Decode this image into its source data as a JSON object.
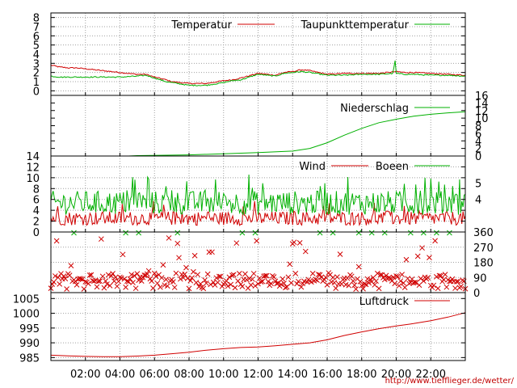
{
  "footer_url": "http://www.tiefflieger.de/wetter/",
  "colors": {
    "red": "#d00000",
    "green": "#00b000",
    "grid": "#a0a0a0",
    "frame": "#000000",
    "footer": "#cc0000"
  },
  "chart_data": [
    {
      "id": "temp",
      "type": "line",
      "xlim": [
        0,
        1440
      ],
      "ylim": [
        -0.5,
        8.5
      ],
      "y_ticks": [
        0,
        1,
        2,
        3,
        4,
        5,
        6,
        7,
        8
      ],
      "y_tick_labels": [
        "0",
        "1",
        "2",
        "3",
        "4",
        "5",
        "6",
        "7",
        "8"
      ],
      "legend": [
        "Temperatur",
        "Taupunkttemperatur"
      ],
      "series": [
        {
          "name": "Temperatur",
          "color": "red",
          "x": [
            0,
            30,
            60,
            90,
            120,
            180,
            240,
            300,
            330,
            360,
            400,
            420,
            480,
            540,
            600,
            630,
            660,
            720,
            780,
            810,
            840,
            870,
            900,
            960,
            1020,
            1080,
            1140,
            1200,
            1230,
            1260,
            1320,
            1380,
            1440
          ],
          "y": [
            2.8,
            2.6,
            2.5,
            2.5,
            2.4,
            2.2,
            2.0,
            1.8,
            1.8,
            1.5,
            1.2,
            1.0,
            0.8,
            0.8,
            1.1,
            1.2,
            1.4,
            1.9,
            1.7,
            2.0,
            2.1,
            2.3,
            2.2,
            1.8,
            1.9,
            1.9,
            1.9,
            2.1,
            2.0,
            2.0,
            1.9,
            1.8,
            1.7
          ]
        },
        {
          "name": "Taupunkttemperatur",
          "color": "green",
          "x": [
            0,
            30,
            60,
            90,
            120,
            180,
            240,
            300,
            330,
            360,
            400,
            420,
            480,
            540,
            600,
            630,
            660,
            720,
            780,
            810,
            840,
            870,
            900,
            960,
            1020,
            1080,
            1140,
            1190,
            1195,
            1200,
            1230,
            1260,
            1320,
            1380,
            1440
          ],
          "y": [
            1.6,
            1.5,
            1.5,
            1.5,
            1.5,
            1.5,
            1.5,
            1.6,
            1.7,
            1.4,
            1.0,
            0.9,
            0.6,
            0.6,
            0.9,
            1.1,
            1.2,
            1.8,
            1.6,
            1.9,
            2.0,
            2.1,
            2.0,
            1.7,
            1.7,
            1.8,
            1.8,
            1.9,
            3.6,
            1.9,
            1.8,
            1.8,
            1.7,
            1.7,
            1.6
          ]
        }
      ]
    },
    {
      "id": "rain",
      "type": "line",
      "xlim": [
        0,
        1440
      ],
      "ylim": [
        0,
        16
      ],
      "y_ticks": [
        0,
        2,
        4,
        6,
        8,
        10,
        12,
        14,
        16
      ],
      "y_tick_labels": [
        "0",
        "2",
        "4",
        "6",
        "8",
        "10",
        "12",
        "14",
        "16"
      ],
      "legend": [
        "Niederschlag"
      ],
      "series": [
        {
          "name": "Niederschlag",
          "color": "green",
          "x": [
            0,
            270,
            300,
            480,
            600,
            720,
            840,
            900,
            960,
            1020,
            1080,
            1140,
            1200,
            1260,
            1320,
            1380,
            1440
          ],
          "y": [
            0,
            0,
            0.1,
            0.3,
            0.6,
            0.9,
            1.3,
            2.0,
            3.5,
            5.5,
            7.3,
            8.8,
            9.7,
            10.5,
            11.0,
            11.4,
            11.7
          ]
        }
      ]
    },
    {
      "id": "wind",
      "type": "line",
      "xlim": [
        0,
        1440
      ],
      "ylim": [
        0,
        14
      ],
      "y_ticks": [
        0,
        2,
        4,
        6,
        8,
        10,
        12,
        14
      ],
      "y_tick_labels": [
        "0",
        "2",
        "4",
        "6",
        "8",
        "10",
        "12",
        "14"
      ],
      "right_ticks": [
        4,
        5
      ],
      "right_tick_values": [
        6,
        9
      ],
      "legend": [
        "Wind",
        "Boeen"
      ],
      "series": [
        {
          "name": "Wind",
          "color": "red",
          "mean": 2.0,
          "amp": 1.3
        },
        {
          "name": "Boeen",
          "color": "green",
          "mean": 4.5,
          "amp": 2.2
        }
      ]
    },
    {
      "id": "direction",
      "type": "scatter",
      "xlim": [
        0,
        1440
      ],
      "ylim": [
        0,
        360
      ],
      "right_ticks": [
        0,
        90,
        180,
        270,
        360
      ],
      "right_tick_labels": [
        "0",
        "90",
        "180",
        "270",
        "360"
      ],
      "clusters": [
        90,
        45
      ],
      "color": "red"
    },
    {
      "id": "pressure",
      "type": "line",
      "xlim": [
        0,
        1440
      ],
      "ylim": [
        984,
        1007
      ],
      "y_ticks": [
        985,
        990,
        995,
        1000,
        1005
      ],
      "y_tick_labels": [
        "985",
        "990",
        "995",
        "1000",
        "1005"
      ],
      "legend": [
        "Luftdruck"
      ],
      "series": [
        {
          "name": "Luftdruck",
          "color": "red",
          "x": [
            0,
            60,
            120,
            180,
            240,
            300,
            360,
            420,
            480,
            540,
            600,
            660,
            720,
            780,
            840,
            900,
            960,
            1020,
            1080,
            1140,
            1200,
            1260,
            1320,
            1380,
            1440
          ],
          "y": [
            985.8,
            985.6,
            985.4,
            985.3,
            985.3,
            985.5,
            985.8,
            986.3,
            986.8,
            987.5,
            988.0,
            988.4,
            988.6,
            989.0,
            989.5,
            990.0,
            991.0,
            992.5,
            993.7,
            994.8,
            995.7,
            996.5,
            997.5,
            998.7,
            1000.2
          ]
        }
      ]
    }
  ],
  "x_axis": {
    "ticks": [
      120,
      240,
      360,
      480,
      600,
      720,
      840,
      960,
      1080,
      1200,
      1320
    ],
    "labels": [
      "02:00",
      "04:00",
      "06:00",
      "08:00",
      "10:00",
      "12:00",
      "14:00",
      "16:00",
      "18:00",
      "20:00",
      "22:00"
    ]
  }
}
